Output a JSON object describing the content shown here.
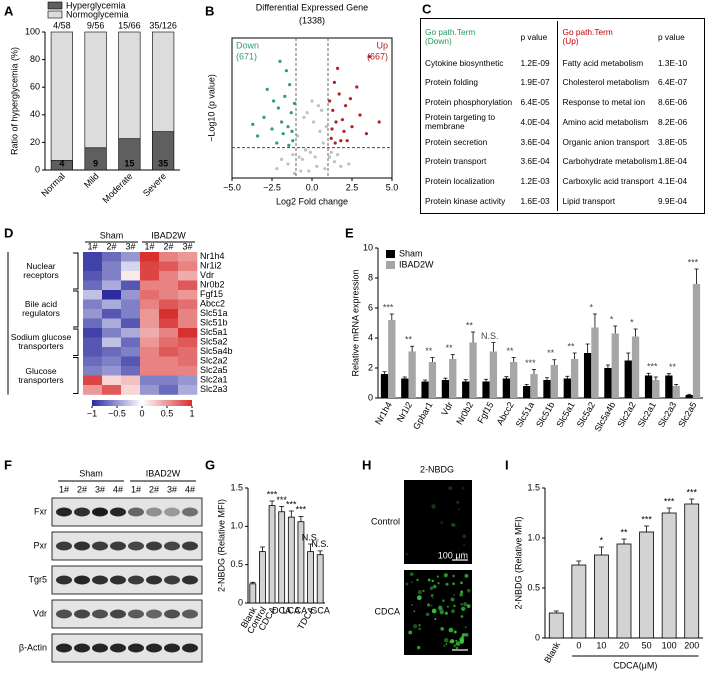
{
  "chart_data": [
    {
      "panel": "A",
      "type": "stacked_bar",
      "ylabel": "Ratio of hyperglycemia (%)",
      "categories": [
        "Normal",
        "Mild",
        "Moderate",
        "Severe"
      ],
      "ylim": [
        0,
        100
      ],
      "yticks": [
        0,
        20,
        40,
        60,
        80,
        100
      ],
      "series": [
        {
          "name": "Hyperglycemia",
          "color": "#5f5f5f",
          "values": [
            6.9,
            16.1,
            22.7,
            27.8
          ]
        },
        {
          "name": "Normoglycemia",
          "color": "#dcdcdc",
          "values": [
            93.1,
            83.9,
            77.3,
            72.2
          ]
        }
      ],
      "counts": [
        4,
        9,
        15,
        35
      ],
      "fractions": [
        "4/58",
        "9/56",
        "15/66",
        "35/126"
      ]
    },
    {
      "panel": "B",
      "type": "scatter",
      "title": "Differential Expressed Gene",
      "subtitle": "(1338)",
      "xlabel": "Log2 Fold change",
      "ylabel": "−Log10 (p value)",
      "xlim": [
        -5,
        5
      ],
      "xticks": [
        {
          "value": -5,
          "label": "−5.0"
        },
        {
          "value": -2.5,
          "label": "−2.5"
        },
        {
          "value": 0,
          "label": "0.0"
        },
        {
          "value": 2.5,
          "label": "2.5"
        },
        {
          "value": 5,
          "label": "5.0"
        }
      ],
      "ylim": [
        0,
        6
      ],
      "vlines": [
        -1,
        1
      ],
      "hline": 1.3,
      "series": [
        {
          "color": "#c0c0c0",
          "x": [
            -0.2,
            0.3,
            -0.6,
            0.8,
            -1.2,
            1.1,
            -0.9,
            0.5,
            -0.4,
            0.1,
            -1.5,
            1.4,
            0.7,
            -0.7,
            0.2,
            -0.1,
            1.8,
            -1.9,
            0.9,
            -0.3,
            0.4,
            -1.1,
            1.2,
            -0.5,
            0.6,
            -2.2,
            2.3,
            0,
            -0.8,
            1.6
          ],
          "y": [
            0.3,
            0.5,
            0.8,
            0.4,
            1.0,
            0.9,
            1.8,
            2.0,
            1.2,
            2.4,
            0.6,
            0.7,
            1.5,
            0.3,
            0.9,
            1.1,
            0.5,
            0.8,
            2.2,
            2.8,
            3.1,
            0.2,
            1.1,
            2.6,
            2.9,
            0.4,
            0.6,
            3.3,
            0.9,
            1.0
          ]
        },
        {
          "name": "Down",
          "label": "(671)",
          "color": "#2e9e6a",
          "x": [
            -1.2,
            -1.5,
            -1.8,
            -2.1,
            -1.3,
            -2.5,
            -1.7,
            -3.0,
            -1.4,
            -2.2,
            -1.1,
            -2.8,
            -1.9,
            -3.4,
            -1.6,
            -2.4,
            -1.25,
            -2.0,
            -3.7,
            -1.45
          ],
          "y": [
            1.6,
            2.2,
            1.9,
            3.0,
            2.8,
            2.1,
            3.5,
            2.6,
            4.0,
            1.5,
            3.2,
            3.8,
            2.4,
            1.8,
            4.6,
            3.3,
            2.0,
            5.0,
            2.3,
            1.4
          ]
        },
        {
          "name": "Up",
          "label": "(667)",
          "color": "#b22222",
          "x": [
            1.2,
            1.5,
            1.8,
            2.1,
            1.3,
            2.5,
            1.7,
            3.0,
            1.4,
            2.2,
            1.1,
            2.8,
            1.9,
            3.4,
            1.6,
            2.4,
            1.25,
            2.0,
            3.6,
            1.45,
            4.2
          ],
          "y": [
            1.7,
            2.4,
            1.6,
            3.1,
            2.9,
            2.2,
            3.6,
            2.7,
            4.1,
            1.6,
            3.3,
            3.9,
            2.5,
            1.9,
            4.7,
            3.4,
            2.1,
            2.0,
            5.2,
            1.5,
            2.4
          ]
        }
      ]
    },
    {
      "panel": "D",
      "type": "heatmap",
      "column_groups": [
        {
          "name": "Sham",
          "columns": [
            "1#",
            "2#",
            "3#"
          ]
        },
        {
          "name": "IBAD2W",
          "columns": [
            "1#",
            "2#",
            "3#"
          ]
        }
      ],
      "row_groups": [
        {
          "name": "Nuclear receptors",
          "rows": [
            "Nr1h4",
            "Nr1i2",
            "Vdr",
            "Nr0b2"
          ],
          "values": [
            [
              -0.9,
              -0.7,
              -0.5,
              1.0,
              0.6,
              0.5
            ],
            [
              -0.9,
              -0.6,
              -0.2,
              0.9,
              0.8,
              0.6
            ],
            [
              -0.8,
              -0.6,
              0.1,
              0.9,
              0.6,
              0.4
            ],
            [
              -0.7,
              -0.4,
              -0.8,
              0.6,
              0.6,
              0.8
            ]
          ]
        },
        {
          "name": "Bile acid regulators",
          "rows": [
            "Fgf15",
            "Abcc2",
            "Slc51a",
            "Slc51b"
          ],
          "values": [
            [
              -0.3,
              -1.0,
              -0.5,
              0.7,
              0.6,
              0.5
            ],
            [
              -0.6,
              -0.4,
              -0.6,
              0.6,
              0.8,
              0.7
            ],
            [
              -0.5,
              -0.8,
              -0.6,
              0.5,
              1.0,
              0.6
            ],
            [
              -0.7,
              -0.4,
              -0.8,
              0.5,
              0.9,
              0.6
            ]
          ]
        },
        {
          "name": "Sodium glucose transporters",
          "rows": [
            "Slc5a1",
            "Slc5a2",
            "Slc5a4b"
          ],
          "values": [
            [
              -0.9,
              -0.6,
              -0.4,
              0.4,
              0.6,
              1.0
            ],
            [
              -0.8,
              -0.3,
              -0.7,
              0.5,
              0.7,
              0.8
            ],
            [
              -0.8,
              -0.7,
              -0.6,
              0.6,
              0.8,
              0.7
            ]
          ]
        },
        {
          "name": "Glucose transporters",
          "rows": [
            "Slc2a2",
            "Slc2a5",
            "Slc2a1",
            "Slc2a3"
          ],
          "values": [
            [
              -0.7,
              -0.6,
              -0.8,
              0.6,
              0.6,
              0.7
            ],
            [
              -0.6,
              -0.5,
              -0.7,
              0.6,
              0.6,
              0.6
            ],
            [
              0.9,
              0.2,
              0.3,
              -0.6,
              -0.6,
              -0.5
            ],
            [
              0.5,
              0.8,
              0.2,
              -0.5,
              -0.7,
              -0.4
            ]
          ]
        }
      ],
      "zlim": [
        -1,
        1
      ],
      "zticks": [
        {
          "value": -1,
          "label": "−1"
        },
        {
          "value": -0.5,
          "label": "−0.5"
        },
        0,
        0.5,
        1
      ],
      "colors": [
        "#2c2ca0",
        "#ffffff",
        "#d7302f"
      ]
    },
    {
      "panel": "E",
      "type": "grouped_bar",
      "ylabel": "Relative mRNA expression",
      "categories": [
        "Nr1h4",
        "Nr1i2",
        "Gpbar1",
        "Vdr",
        "Nr0b2",
        "Fgf15",
        "Abcc2",
        "Slc51a",
        "Slc51b",
        "Slc5a1",
        "Slc5a2",
        "Slc5a4b",
        "Slc2a2",
        "Slc2a1",
        "Slc2a3",
        "Slc2a5"
      ],
      "ylim": [
        0,
        10
      ],
      "yticks": [
        0,
        2,
        4,
        6,
        8,
        10
      ],
      "series": [
        {
          "name": "Sham",
          "color": "#000000",
          "values": [
            1.6,
            1.3,
            1.1,
            1.2,
            1.1,
            1.1,
            1.3,
            0.8,
            1.2,
            1.3,
            3.0,
            2.0,
            2.5,
            1.5,
            1.5,
            0.2
          ],
          "errors": [
            0.15,
            0.1,
            0.1,
            0.12,
            0.12,
            0.15,
            0.12,
            0.1,
            0.15,
            0.15,
            0.6,
            0.2,
            0.5,
            0.15,
            0.12,
            0.05
          ]
        },
        {
          "name": "IBAD2W",
          "color": "#a6a6a6",
          "values": [
            5.2,
            3.1,
            2.4,
            2.6,
            3.7,
            3.1,
            2.4,
            1.6,
            2.2,
            2.6,
            4.7,
            4.3,
            4.1,
            1.2,
            0.8,
            7.6
          ],
          "errors": [
            0.4,
            0.35,
            0.3,
            0.3,
            0.7,
            0.6,
            0.3,
            0.3,
            0.35,
            0.4,
            0.9,
            0.5,
            0.5,
            0.2,
            0.1,
            1.0
          ]
        }
      ],
      "significance": [
        "***",
        "**",
        "**",
        "**",
        "**",
        "N.S.",
        "**",
        "***",
        "**",
        "**",
        "*",
        "*",
        "*",
        "***",
        "**",
        "***"
      ]
    },
    {
      "panel": "G",
      "type": "bar",
      "ylabel": "2-NBDG (Relative MFI)",
      "categories": [
        "Blank",
        "Control",
        "CDCA",
        "DCA",
        "LCA",
        "CA",
        "TDCA",
        "GCA"
      ],
      "values": [
        0.25,
        0.67,
        1.27,
        1.19,
        1.12,
        1.06,
        0.67,
        0.63
      ],
      "errors": [
        0.02,
        0.06,
        0.06,
        0.07,
        0.08,
        0.07,
        0.1,
        0.05
      ],
      "color": "#d3d3d3",
      "ylim": [
        0,
        1.5
      ],
      "yticks": [
        0,
        0.5,
        {
          "value": 1,
          "label": "1.0"
        },
        1.5
      ],
      "significance": [
        null,
        null,
        "***",
        "***",
        "***",
        "***",
        "N.S.",
        "N.S."
      ]
    },
    {
      "panel": "I",
      "type": "bar",
      "ylabel": "2-NBDG (Relative MFI)",
      "xlabel": "CDCA(μM)",
      "categories": [
        "Blank",
        "0",
        "10",
        "20",
        "50",
        "100",
        "200"
      ],
      "values": [
        0.25,
        0.73,
        0.83,
        0.94,
        1.06,
        1.25,
        1.34
      ],
      "errors": [
        0.02,
        0.04,
        0.08,
        0.05,
        0.06,
        0.05,
        0.05
      ],
      "color": "#d3d3d3",
      "ylim": [
        0,
        1.5
      ],
      "yticks": [
        0,
        0.5,
        {
          "value": 1,
          "label": "1.0"
        },
        1.5
      ],
      "significance": [
        null,
        null,
        "*",
        "**",
        "***",
        "***",
        "***"
      ]
    }
  ],
  "table": {
    "panel": "C",
    "header": {
      "down_term": "Go path.Term",
      "down_tag": "(Down)",
      "down_p": "p value",
      "up_term": "Go path.Term",
      "up_tag": "(Up)",
      "up_p": "p value"
    },
    "rows": [
      [
        "Cytokine biosynthetic",
        "1.2E-09",
        "Fatty acid metabolism",
        "1.3E-10"
      ],
      [
        "Protein folding",
        "1.9E-07",
        "Cholesterol metabolism",
        "6.4E-07"
      ],
      [
        "Protein phosphorylation",
        "6.4E-05",
        "Response to metal ion",
        "8.6E-06"
      ],
      [
        "Protein targeting to membrane",
        "4.0E-04",
        "Amino acid metabolism",
        "8.2E-06"
      ],
      [
        "Protein secretion",
        "3.6E-04",
        "Organic anion transport",
        "3.8E-05"
      ],
      [
        "Protein transport",
        "3.6E-04",
        "Carbohydrate metabolism",
        "1.8E-04"
      ],
      [
        "Protein localization",
        "1.2E-03",
        "Carboxylic acid transport",
        "4.1E-04"
      ],
      [
        "Protein kinase activity",
        "1.6E-03",
        "Lipid transport",
        "9.9E-04"
      ]
    ]
  },
  "blot": {
    "panel": "F",
    "groups": [
      {
        "name": "Sham",
        "lanes": [
          "1#",
          "2#",
          "3#",
          "4#"
        ]
      },
      {
        "name": "IBAD2W",
        "lanes": [
          "1#",
          "2#",
          "3#",
          "4#"
        ]
      }
    ],
    "proteins": [
      "Fxr",
      "Pxr",
      "Tgr5",
      "Vdr",
      "β-Actin"
    ]
  },
  "micrographs": {
    "panel": "H",
    "title": "2-NBDG",
    "rows": [
      "Control",
      "CDCA"
    ],
    "scale_bar": "100 μm"
  }
}
